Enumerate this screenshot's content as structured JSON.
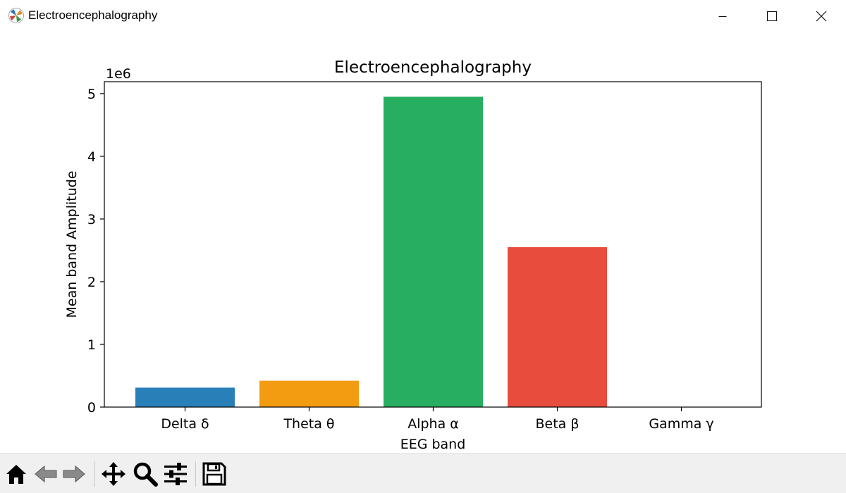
{
  "window": {
    "title": "Electroencephalography",
    "controls": [
      "minimize",
      "maximize",
      "close"
    ]
  },
  "toolbar": {
    "buttons": [
      {
        "name": "home",
        "icon": "home-icon"
      },
      {
        "name": "back",
        "icon": "back-arrow-icon"
      },
      {
        "name": "forward",
        "icon": "forward-arrow-icon"
      },
      {
        "name": "pan",
        "icon": "move-icon"
      },
      {
        "name": "zoom",
        "icon": "magnifier-icon"
      },
      {
        "name": "configure-subplots",
        "icon": "sliders-icon"
      },
      {
        "name": "save",
        "icon": "floppy-disk-icon"
      }
    ]
  },
  "chart_data": {
    "type": "bar",
    "title": "Electroencephalography",
    "xlabel": "EEG band",
    "ylabel": "Mean band Amplitude",
    "offset_label": "1e6",
    "categories": [
      "Delta δ",
      "Theta θ",
      "Alpha α",
      "Beta β",
      "Gamma γ"
    ],
    "values": [
      0.31,
      0.42,
      4.95,
      2.55,
      0.0
    ],
    "colors": [
      "#2980b9",
      "#f39c12",
      "#27ae60",
      "#e74c3c",
      "#8e44ad"
    ],
    "yticks": [
      0,
      1,
      2,
      3,
      4,
      5
    ],
    "ylim": [
      0,
      5.19
    ],
    "grid": false,
    "legend": "none"
  }
}
